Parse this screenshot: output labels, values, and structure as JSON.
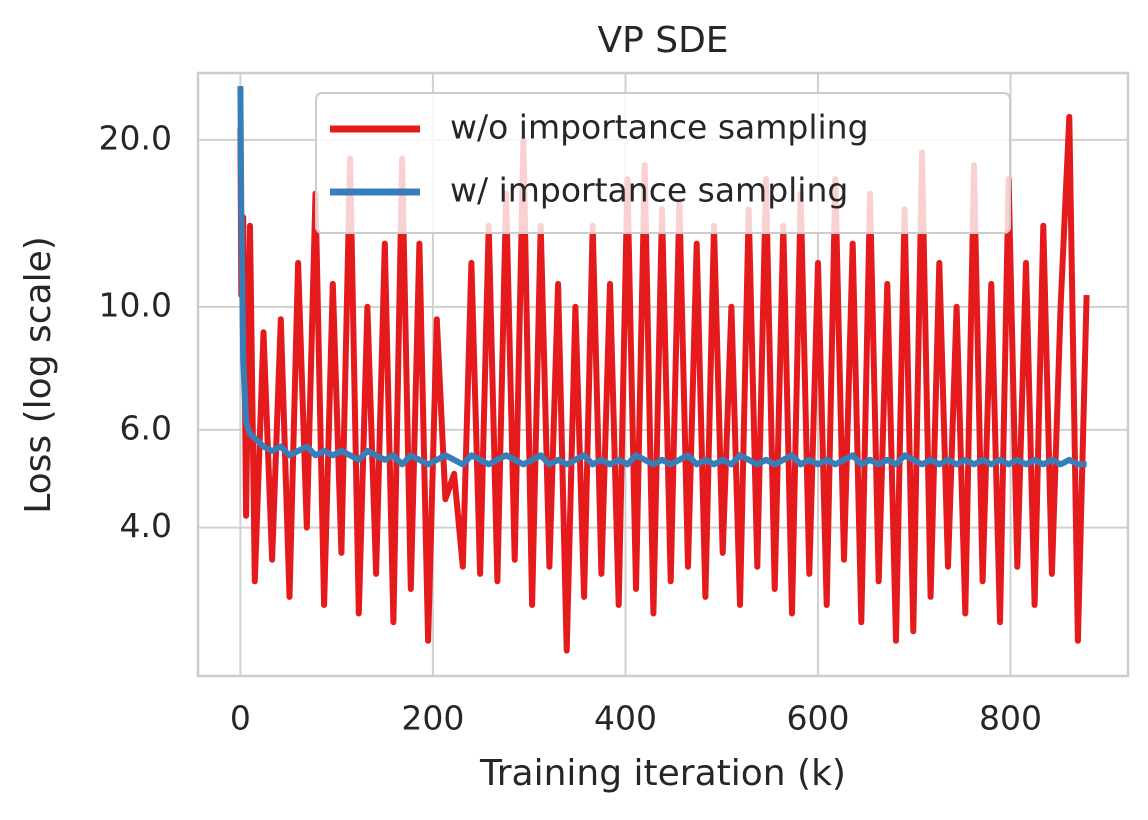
{
  "chart_data": {
    "type": "line",
    "title": "VP SDE",
    "xlabel": "Training iteration (k)",
    "ylabel": "Loss (log scale)",
    "yscale": "log",
    "grid": true,
    "legend": "upper center",
    "xlim": [
      -44,
      922
    ],
    "ylim": [
      2.16,
      26.4
    ],
    "xticks": [
      0,
      200,
      400,
      600,
      800
    ],
    "yticks": [
      {
        "value": 4,
        "label": "4.0"
      },
      {
        "value": 6,
        "label": "6.0"
      },
      {
        "value": 10,
        "label": "10.0"
      },
      {
        "value": 20,
        "label": "20.0"
      }
    ],
    "x": [
      0,
      1,
      3,
      6,
      10,
      15,
      24,
      33,
      42,
      51,
      60,
      69,
      78,
      87,
      96,
      105,
      114,
      123,
      132,
      141,
      150,
      159,
      168,
      177,
      186,
      195,
      204,
      213,
      222,
      231,
      240,
      249,
      258,
      267,
      276,
      285,
      294,
      303,
      312,
      321,
      330,
      339,
      348,
      357,
      366,
      375,
      384,
      393,
      402,
      411,
      420,
      429,
      438,
      447,
      456,
      465,
      474,
      483,
      492,
      501,
      510,
      519,
      528,
      537,
      546,
      555,
      564,
      573,
      582,
      591,
      600,
      609,
      618,
      627,
      636,
      645,
      654,
      663,
      672,
      681,
      690,
      699,
      708,
      717,
      726,
      735,
      744,
      753,
      762,
      771,
      780,
      789,
      798,
      807,
      816,
      825,
      834,
      843,
      852,
      861,
      870,
      879
    ],
    "series": [
      {
        "name": "w/o importance sampling",
        "color": "#e41a1c",
        "values": [
          21,
          10.5,
          14.5,
          4.2,
          14,
          3.2,
          9,
          3.5,
          9.5,
          3.0,
          12,
          4,
          16,
          2.9,
          11,
          3.6,
          18.5,
          2.8,
          10,
          3.3,
          13,
          2.7,
          18.5,
          3.1,
          13,
          2.5,
          9.5,
          4.5,
          5,
          3.4,
          12,
          3.3,
          14,
          3.2,
          16,
          3.5,
          20,
          2.9,
          14,
          3.4,
          11,
          2.4,
          10,
          3,
          14,
          3.3,
          11,
          2.9,
          17,
          3.1,
          18,
          2.8,
          15,
          3.2,
          15.5,
          3.4,
          13,
          3,
          14,
          3.6,
          10,
          2.9,
          15,
          3.4,
          17,
          3.1,
          14,
          2.8,
          16,
          3.3,
          12,
          2.9,
          17,
          3.5,
          13,
          2.7,
          16,
          3.2,
          11,
          2.5,
          15,
          2.6,
          19,
          3.0,
          12,
          3.4,
          10,
          2.8,
          18,
          3.2,
          11,
          2.7,
          17,
          3.4,
          12,
          2.9,
          14,
          3.3,
          10,
          22,
          2.5,
          10.5
        ]
      },
      {
        "name": "w/ importance sampling",
        "color": "#377eb8",
        "values": [
          25,
          15,
          8,
          6.2,
          5.9,
          5.8,
          5.6,
          5.5,
          5.6,
          5.4,
          5.5,
          5.6,
          5.4,
          5.5,
          5.4,
          5.5,
          5.4,
          5.3,
          5.5,
          5.4,
          5.3,
          5.4,
          5.2,
          5.4,
          5.3,
          5.2,
          5.3,
          5.4,
          5.3,
          5.2,
          5.4,
          5.3,
          5.2,
          5.3,
          5.4,
          5.3,
          5.2,
          5.3,
          5.4,
          5.2,
          5.3,
          5.2,
          5.3,
          5.4,
          5.2,
          5.3,
          5.2,
          5.3,
          5.2,
          5.4,
          5.3,
          5.2,
          5.3,
          5.2,
          5.3,
          5.4,
          5.2,
          5.3,
          5.2,
          5.3,
          5.2,
          5.4,
          5.3,
          5.2,
          5.3,
          5.2,
          5.3,
          5.4,
          5.2,
          5.3,
          5.2,
          5.3,
          5.2,
          5.3,
          5.4,
          5.2,
          5.3,
          5.2,
          5.3,
          5.2,
          5.4,
          5.3,
          5.2,
          5.3,
          5.2,
          5.3,
          5.2,
          5.3,
          5.2,
          5.3,
          5.2,
          5.3,
          5.2,
          5.3,
          5.2,
          5.3,
          5.2,
          5.3,
          5.2,
          5.3,
          5.2,
          5.2
        ]
      }
    ]
  }
}
